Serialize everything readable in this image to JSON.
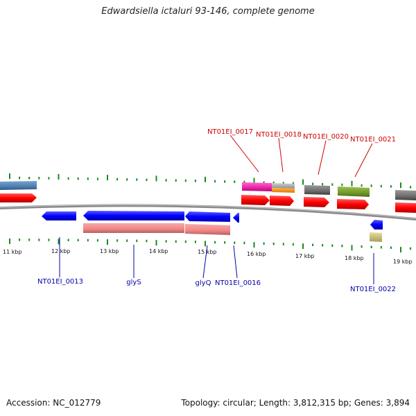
{
  "title": "Edwardsiella ictaluri 93-146, complete genome",
  "footer": {
    "accession": "Accession: NC_012779",
    "topology": "Topology: circular; Length: 3,812,315 bp; Genes: 3,894"
  },
  "kbp_labels": [
    "11 kbp",
    "12 kbp",
    "13 kbp",
    "14 kbp",
    "15 kbp",
    "16 kbp",
    "17 kbp",
    "18 kbp",
    "19 kbp"
  ],
  "gene_labels_top": [
    "NT01EI_0017",
    "NT01EI_0018",
    "NT01EI_0020",
    "NT01EI_0021"
  ],
  "gene_labels_bottom": [
    "NT01EI_0013",
    "glyS",
    "glyQ",
    "NT01EI_0016",
    "NT01EI_0022"
  ],
  "colors": {
    "forward_cds": "#ff0000",
    "reverse_cds": "#0000ff",
    "label_top": "#cc0000",
    "label_bottom": "#0000aa",
    "tick": "#1a8a1a",
    "backbone": "#888888",
    "reverse_rna": "#f08a8a"
  }
}
